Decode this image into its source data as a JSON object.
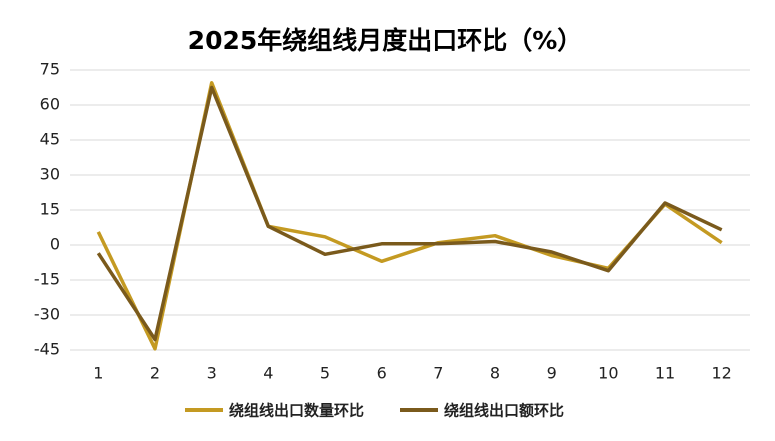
{
  "chart_data": {
    "type": "line",
    "title": "2025年绕组线月度出口环比（%）",
    "categories": [
      "1",
      "2",
      "3",
      "4",
      "5",
      "6",
      "7",
      "8",
      "9",
      "10",
      "11",
      "12"
    ],
    "series": [
      {
        "name": "绕组线出口数量环比",
        "color": "#c49a22",
        "values": [
          5.6,
          -44.5,
          69.5,
          8,
          3.5,
          -7,
          1,
          4,
          -4.5,
          -10,
          17.5,
          1
        ]
      },
      {
        "name": "绕组线出口额环比",
        "color": "#7a5a1c",
        "values": [
          -3.5,
          -40.5,
          67.5,
          8,
          -4,
          0.5,
          0.5,
          1.5,
          -3,
          -11,
          18,
          6.5
        ]
      }
    ],
    "ylim": [
      -45,
      75
    ],
    "yticks": [
      -45,
      -30,
      -15,
      0,
      15,
      30,
      45,
      60,
      75
    ],
    "grid": true,
    "legend": "bottom"
  }
}
